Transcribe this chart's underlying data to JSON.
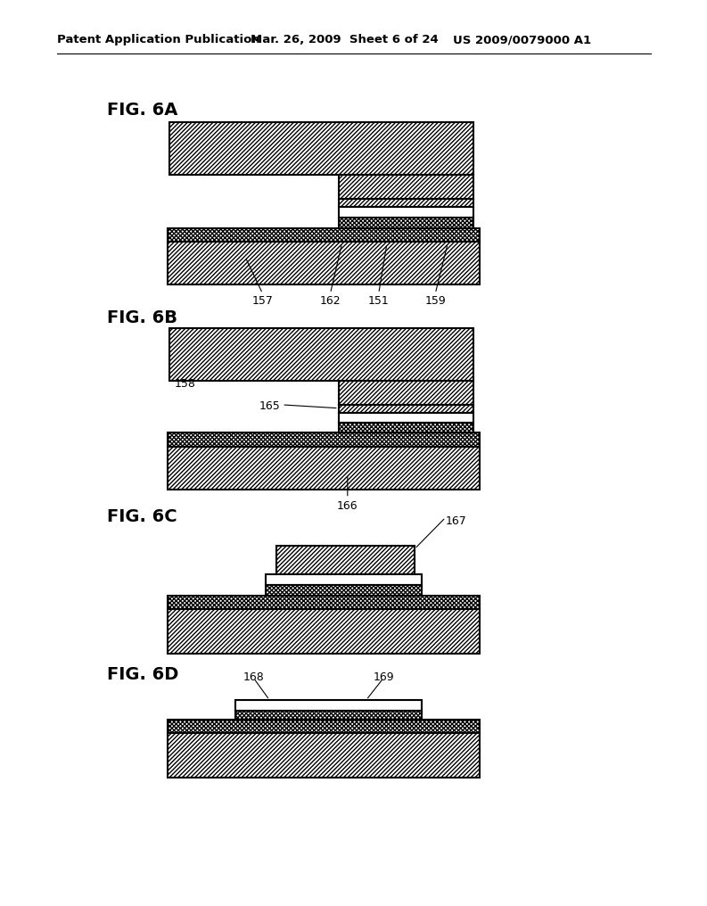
{
  "bg_color": "#ffffff",
  "header_left": "Patent Application Publication",
  "header_mid": "Mar. 26, 2009  Sheet 6 of 24",
  "header_right": "US 2009/0079000 A1",
  "fig_labels": [
    "FIG. 6A",
    "FIG. 6B",
    "FIG. 6C",
    "FIG. 6D"
  ]
}
